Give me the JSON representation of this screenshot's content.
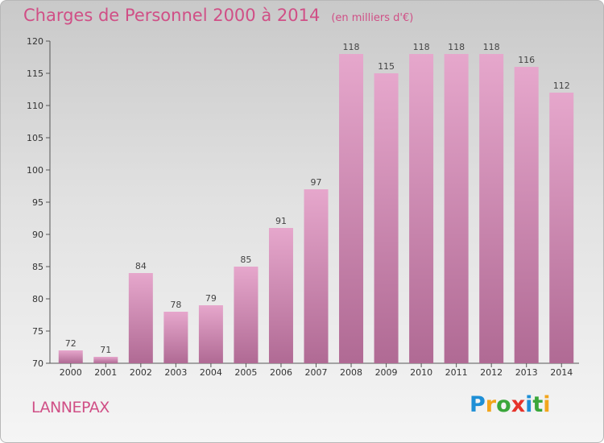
{
  "title": "Charges de Personnel 2000 à 2014",
  "unit_note": "(en milliers d'€)",
  "commune": "LANNEPAX",
  "logo": {
    "text": "Proxiti",
    "letters": [
      {
        "ch": "P",
        "color": "#1e8fd6"
      },
      {
        "ch": "r",
        "color": "#f2a51c"
      },
      {
        "ch": "o",
        "color": "#3aa63a"
      },
      {
        "ch": "x",
        "color": "#e6332a"
      },
      {
        "ch": "i",
        "color": "#1e8fd6"
      },
      {
        "ch": "t",
        "color": "#3aa63a"
      },
      {
        "ch": "i",
        "color": "#f2a51c"
      }
    ]
  },
  "colors": {
    "accent": "#d04f86",
    "bar_top": "#e6a7cc",
    "bar_bottom": "#b06a94"
  },
  "chart_data": {
    "type": "bar",
    "title": "Charges de Personnel 2000 à 2014",
    "categories": [
      "2000",
      "2001",
      "2002",
      "2003",
      "2004",
      "2005",
      "2006",
      "2007",
      "2008",
      "2009",
      "2010",
      "2011",
      "2012",
      "2013",
      "2014"
    ],
    "values": [
      72,
      71,
      84,
      78,
      79,
      85,
      91,
      97,
      118,
      115,
      118,
      118,
      118,
      116,
      112
    ],
    "ylim": [
      70,
      120
    ],
    "yticks": [
      70,
      75,
      80,
      85,
      90,
      95,
      100,
      105,
      110,
      115,
      120
    ],
    "grid": false
  }
}
